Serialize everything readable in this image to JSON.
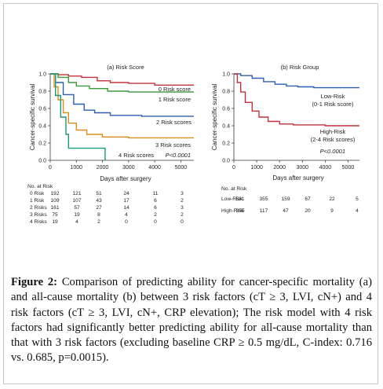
{
  "figure": {
    "caption_label": "Figure 2:",
    "caption_text": "Comparison of predicting ability for cancer-specific mortality (a) and all-cause mortality (b) between 3 risk factors (cT ≥ 3, LVI, cN+) and 4 risk factors (cT ≥ 3, LVI, cN+, CRP elevation); The risk model with 4 risk factors had significantly better predicting ability for all-cause mortality than that with 3 risk factors (excluding baseline CRP ≥ 0.5 mg/dL, C-index: 0.716 vs. 0.685, p=0.0015)."
  },
  "chart_data": [
    {
      "type": "line",
      "title": "(a) Risk Score",
      "xlabel": "Days after surgery",
      "ylabel": "Cancer-specific survival",
      "xlim": [
        0,
        5500
      ],
      "ylim": [
        0,
        1.0
      ],
      "xticks": [
        "0",
        "1000",
        "2000",
        "3000",
        "4000",
        "5000"
      ],
      "yticks": [
        "0.0",
        "0.2",
        "0.4",
        "0.6",
        "0.8",
        "1.0"
      ],
      "pvalue": "P<0.0001",
      "colors": [
        "#c0323a",
        "#3a9a3c",
        "#2d5fb0",
        "#d98e1e",
        "#1c9a7e"
      ],
      "series": [
        {
          "name": "0 Risk score",
          "points": [
            [
              0,
              1.0
            ],
            [
              300,
              0.99
            ],
            [
              700,
              0.975
            ],
            [
              1200,
              0.96
            ],
            [
              1800,
              0.92
            ],
            [
              2300,
              0.9
            ],
            [
              3000,
              0.89
            ],
            [
              4000,
              0.87
            ],
            [
              5500,
              0.87
            ]
          ]
        },
        {
          "name": "1 Risk score",
          "points": [
            [
              0,
              1.0
            ],
            [
              300,
              0.96
            ],
            [
              700,
              0.9
            ],
            [
              1000,
              0.86
            ],
            [
              1500,
              0.83
            ],
            [
              2200,
              0.8
            ],
            [
              3000,
              0.79
            ],
            [
              4500,
              0.79
            ],
            [
              5500,
              0.79
            ]
          ]
        },
        {
          "name": "2 Risk scores",
          "points": [
            [
              0,
              1.0
            ],
            [
              200,
              0.9
            ],
            [
              500,
              0.76
            ],
            [
              900,
              0.65
            ],
            [
              1300,
              0.58
            ],
            [
              1700,
              0.55
            ],
            [
              2300,
              0.52
            ],
            [
              3500,
              0.51
            ],
            [
              5500,
              0.51
            ]
          ]
        },
        {
          "name": "3 Risk scores",
          "points": [
            [
              0,
              1.0
            ],
            [
              150,
              0.85
            ],
            [
              300,
              0.7
            ],
            [
              500,
              0.55
            ],
            [
              700,
              0.43
            ],
            [
              1000,
              0.35
            ],
            [
              1400,
              0.3
            ],
            [
              2000,
              0.27
            ],
            [
              3000,
              0.26
            ],
            [
              5500,
              0.26
            ]
          ]
        },
        {
          "name": "4 Risk scores",
          "points": [
            [
              0,
              1.0
            ],
            [
              200,
              0.75
            ],
            [
              400,
              0.5
            ],
            [
              600,
              0.3
            ],
            [
              700,
              0.14
            ],
            [
              2100,
              0.14
            ],
            [
              2100,
              0.0
            ]
          ]
        }
      ],
      "risk_table": {
        "header": "No. at Risk",
        "rows": [
          {
            "label": "0 Risk",
            "values": [
              "192",
              "121",
              "51",
              "24",
              "11",
              "3"
            ]
          },
          {
            "label": "1 Risk",
            "values": [
              "109",
              "107",
              "43",
              "17",
              "6",
              "2"
            ]
          },
          {
            "label": "2 Risks",
            "values": [
              "161",
              "57",
              "27",
              "14",
              "6",
              "3"
            ]
          },
          {
            "label": "3 Risks",
            "values": [
              "75",
              "19",
              "8",
              "4",
              "2",
              "2"
            ]
          },
          {
            "label": "4 Risks",
            "values": [
              "19",
              "4",
              "2",
              "0",
              "0",
              "0"
            ]
          }
        ]
      }
    },
    {
      "type": "line",
      "title": "(b) Risk Group",
      "xlabel": "Days after surgery",
      "ylabel": "Cancer-specific survival",
      "xlim": [
        0,
        5500
      ],
      "ylim": [
        0,
        1.0
      ],
      "xticks": [
        "0",
        "1000",
        "2000",
        "3000",
        "4000",
        "5000"
      ],
      "yticks": [
        "0.0",
        "0.2",
        "0.4",
        "0.6",
        "0.8",
        "1.0"
      ],
      "pvalue": "P<0.0001",
      "colors": [
        "#2d5fb0",
        "#c0323a"
      ],
      "series": [
        {
          "name": "Low-Risk",
          "note": "(0-1 Risk score)",
          "points": [
            [
              0,
              1.0
            ],
            [
              300,
              0.98
            ],
            [
              800,
              0.95
            ],
            [
              1300,
              0.91
            ],
            [
              1800,
              0.88
            ],
            [
              2300,
              0.86
            ],
            [
              2800,
              0.85
            ],
            [
              3500,
              0.84
            ],
            [
              5500,
              0.84
            ]
          ]
        },
        {
          "name": "High-Risk",
          "note": "(2-4 Risk scores)",
          "points": [
            [
              0,
              1.0
            ],
            [
              150,
              0.9
            ],
            [
              300,
              0.79
            ],
            [
              500,
              0.67
            ],
            [
              800,
              0.57
            ],
            [
              1100,
              0.5
            ],
            [
              1500,
              0.45
            ],
            [
              2000,
              0.42
            ],
            [
              2600,
              0.41
            ],
            [
              4000,
              0.4
            ],
            [
              5500,
              0.4
            ]
          ]
        }
      ],
      "risk_table": {
        "header": "No. at Risk",
        "rows": [
          {
            "label": "Low-Risk",
            "values": [
              "581",
              "355",
              "159",
              "67",
              "22",
              "5"
            ]
          },
          {
            "label": "High-Risk",
            "values": [
              "355",
              "117",
              "47",
              "20",
              "9",
              "4"
            ]
          }
        ]
      }
    }
  ]
}
